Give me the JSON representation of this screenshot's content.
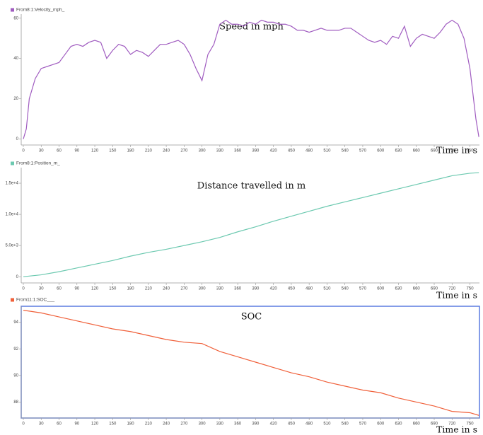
{
  "chart_data": [
    {
      "type": "line",
      "title": "Speed in mph",
      "x_label": "Time in s",
      "x": [
        0,
        5,
        10,
        20,
        30,
        40,
        50,
        60,
        70,
        80,
        90,
        100,
        110,
        120,
        130,
        140,
        150,
        160,
        170,
        180,
        190,
        200,
        210,
        220,
        230,
        240,
        250,
        260,
        270,
        280,
        290,
        300,
        310,
        320,
        330,
        340,
        350,
        360,
        370,
        380,
        390,
        400,
        410,
        420,
        430,
        440,
        450,
        460,
        470,
        480,
        490,
        500,
        510,
        520,
        530,
        540,
        550,
        560,
        570,
        580,
        590,
        600,
        610,
        620,
        630,
        640,
        650,
        660,
        670,
        680,
        690,
        700,
        710,
        720,
        730,
        740,
        750,
        760,
        765
      ],
      "series": [
        {
          "name": "From8:1:Velocity_mph_",
          "color": "#a05cc0",
          "values": [
            0,
            5,
            20,
            30,
            35,
            36,
            37,
            38,
            42,
            46,
            47,
            46,
            48,
            49,
            48,
            40,
            44,
            47,
            46,
            42,
            44,
            43,
            41,
            44,
            47,
            47,
            48,
            49,
            47,
            42,
            35,
            29,
            42,
            47,
            57,
            59,
            57,
            57,
            56,
            58,
            57,
            59,
            58,
            58,
            57,
            57,
            56,
            54,
            54,
            53,
            54,
            55,
            54,
            54,
            54,
            55,
            55,
            53,
            51,
            49,
            48,
            49,
            47,
            51,
            50,
            56,
            46,
            50,
            52,
            51,
            50,
            53,
            57,
            59,
            57,
            50,
            35,
            10,
            1
          ]
        }
      ],
      "xlim": [
        0,
        766
      ],
      "xticks": [
        0,
        30,
        60,
        90,
        120,
        150,
        180,
        210,
        240,
        270,
        300,
        330,
        360,
        390,
        420,
        450,
        480,
        510,
        540,
        570,
        600,
        630,
        660,
        690,
        720,
        750
      ],
      "ylim": [
        -3,
        62
      ],
      "yticks": [
        0,
        20,
        40,
        60
      ]
    },
    {
      "type": "line",
      "title": "Distance travelled in m",
      "x_label": "Time in s",
      "x": [
        0,
        30,
        60,
        90,
        120,
        150,
        180,
        210,
        240,
        270,
        300,
        330,
        360,
        390,
        420,
        450,
        480,
        510,
        540,
        570,
        600,
        630,
        660,
        690,
        720,
        750,
        765
      ],
      "series": [
        {
          "name": "From8:1:Position_m_",
          "color": "#6cc9b0",
          "values": [
            0,
            300,
            800,
            1400,
            2000,
            2600,
            3300,
            3900,
            4400,
            5000,
            5600,
            6300,
            7200,
            8000,
            8900,
            9700,
            10500,
            11300,
            12000,
            12700,
            13400,
            14100,
            14800,
            15500,
            16200,
            16600,
            16700
          ]
        }
      ],
      "xlim": [
        0,
        766
      ],
      "xticks": [
        0,
        30,
        60,
        90,
        120,
        150,
        180,
        210,
        240,
        270,
        300,
        330,
        360,
        390,
        420,
        450,
        480,
        510,
        540,
        570,
        600,
        630,
        660,
        690,
        720,
        750
      ],
      "ylim": [
        -1000,
        17500
      ],
      "yticks": [
        0,
        {
          "value": 5000,
          "label": "5.0e+3"
        },
        {
          "value": 10000,
          "label": "1.0e+4"
        },
        {
          "value": 15000,
          "label": "1.5e+4"
        }
      ]
    },
    {
      "type": "line",
      "title": "SOC",
      "x_label": "Time in s",
      "x": [
        0,
        30,
        60,
        90,
        120,
        150,
        180,
        210,
        240,
        270,
        300,
        330,
        360,
        390,
        420,
        450,
        480,
        510,
        540,
        570,
        600,
        630,
        660,
        690,
        720,
        750,
        765
      ],
      "series": [
        {
          "name": "From11:1:SOC___",
          "color": "#f0603a",
          "values": [
            94.9,
            94.7,
            94.4,
            94.1,
            93.8,
            93.5,
            93.3,
            93.0,
            92.7,
            92.5,
            92.4,
            91.8,
            91.4,
            91.0,
            90.6,
            90.2,
            89.9,
            89.5,
            89.2,
            88.9,
            88.7,
            88.3,
            88.0,
            87.7,
            87.3,
            87.2,
            87.0
          ]
        }
      ],
      "xlim": [
        0,
        766
      ],
      "xticks": [
        0,
        30,
        60,
        90,
        120,
        150,
        180,
        210,
        240,
        270,
        300,
        330,
        360,
        390,
        420,
        450,
        480,
        510,
        540,
        570,
        600,
        630,
        660,
        690,
        720,
        750
      ],
      "ylim": [
        86.8,
        95.2
      ],
      "yticks": [
        88,
        90,
        92,
        94
      ]
    }
  ]
}
